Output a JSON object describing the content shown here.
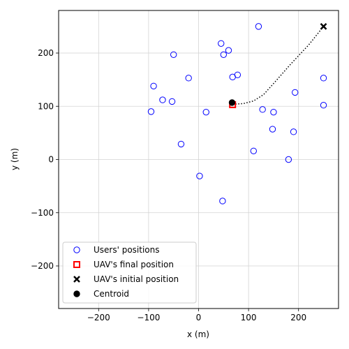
{
  "chart_data": {
    "type": "scatter",
    "xlabel": "x (m)",
    "ylabel": "y (m)",
    "xlim": [
      -280,
      280
    ],
    "ylim": [
      -280,
      280
    ],
    "xticks": [
      -200,
      -100,
      0,
      100,
      200
    ],
    "yticks": [
      -200,
      -100,
      0,
      100,
      200
    ],
    "xtick_labels": [
      "−200",
      "−100",
      "0",
      "100",
      "200"
    ],
    "ytick_labels": [
      "−200",
      "−100",
      "0",
      "100",
      "200"
    ],
    "grid": true,
    "legend_position": "lower-left",
    "series": [
      {
        "name": "Users' positions",
        "marker": "hollow-circle",
        "color": "#0000ff",
        "points": [
          [
            120,
            250
          ],
          [
            45,
            218
          ],
          [
            60,
            205
          ],
          [
            50,
            197
          ],
          [
            -50,
            197
          ],
          [
            78,
            159
          ],
          [
            68,
            155
          ],
          [
            -20,
            153
          ],
          [
            -90,
            138
          ],
          [
            -72,
            112
          ],
          [
            -53,
            109
          ],
          [
            -95,
            90
          ],
          [
            15,
            89
          ],
          [
            128,
            94
          ],
          [
            150,
            89
          ],
          [
            193,
            126
          ],
          [
            250,
            153
          ],
          [
            250,
            102
          ],
          [
            148,
            57
          ],
          [
            190,
            52
          ],
          [
            110,
            16
          ],
          [
            -35,
            29
          ],
          [
            180,
            0
          ],
          [
            2,
            -31
          ],
          [
            48,
            -78
          ]
        ]
      },
      {
        "name": "UAV's final position",
        "marker": "hollow-square",
        "color": "#ff0000",
        "points": [
          [
            68,
            103
          ]
        ]
      },
      {
        "name": "UAV's initial position",
        "marker": "x",
        "color": "#000000",
        "points": [
          [
            250,
            250
          ]
        ]
      },
      {
        "name": "Centroid",
        "marker": "filled-circle",
        "color": "#000000",
        "points": [
          [
            67,
            107
          ]
        ]
      }
    ],
    "trajectory": {
      "style": "dotted",
      "color": "#000000",
      "points": [
        [
          250,
          250
        ],
        [
          220,
          215
        ],
        [
          185,
          180
        ],
        [
          155,
          148
        ],
        [
          130,
          122
        ],
        [
          110,
          110
        ],
        [
          90,
          105
        ],
        [
          72,
          104
        ],
        [
          68,
          103
        ]
      ]
    }
  }
}
